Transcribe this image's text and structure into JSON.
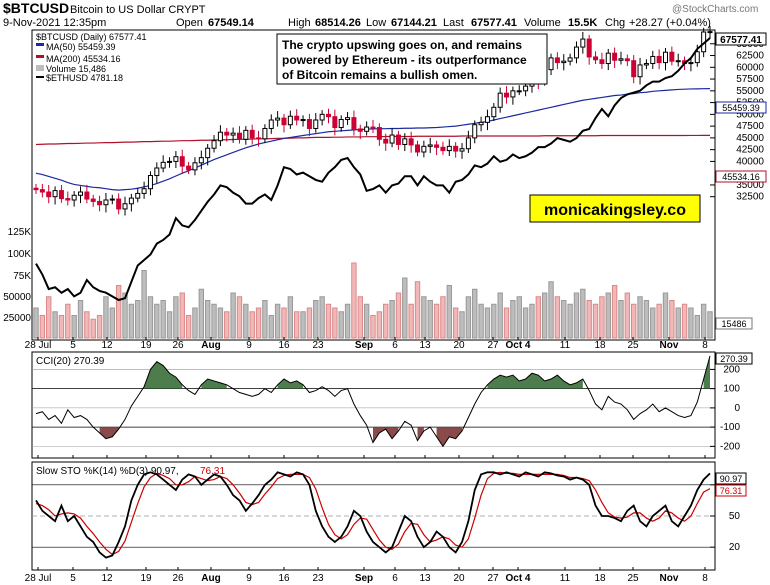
{
  "header": {
    "symbol": "$BTCUSD",
    "subtitle": "Bitcoin to US Dollar  CRYPT",
    "date": "9-Nov-2021 12:35pm",
    "open_label": "Open",
    "open": "67549.14",
    "high_label": "High",
    "high": "68514.26",
    "low_label": "Low",
    "low": "67144.21",
    "last_label": "Last",
    "last": "67577.41",
    "volume_label": "Volume",
    "volume": "15.5K",
    "chg_label": "Chg",
    "chg": "+28.27 (+0.04%)",
    "watermark": "@StockCharts.com"
  },
  "legend": {
    "price": "$BTCUSD (Daily) 67577.41",
    "ma50": "MA(50) 55459.39",
    "ma200": "MA(200) 45534.16",
    "volume": "Volume 15,486",
    "eth": "$ETHUSD 4781.18"
  },
  "annotation": {
    "lines": [
      "The crypto upswing goes on, and remains",
      "powered by Ethereum - its outperformance",
      "of Bitcoin remains a bullish omen."
    ]
  },
  "brand": "monicakingsley.co",
  "badges": {
    "last": "67577.41",
    "ma50": "55459.39",
    "ma200": "45534.16",
    "volume": "15486",
    "cci": "270.39",
    "sto_k": "90.97",
    "sto_d": "76.31"
  },
  "colors": {
    "up": "#000000",
    "down": "#cc0033",
    "ma50": "#1a2aa0",
    "ma200": "#b0102a",
    "cci_fill": "#4d7d4d",
    "cci_neg_fill": "#8b4a4a",
    "sto_d": "#cc0000",
    "brand_bg": "#ffff00",
    "vol_up": "#bdbdbd",
    "vol_down": "#f0b8b8"
  },
  "chart_data": [
    {
      "type": "candlestick",
      "title": "$BTCUSD (Daily)",
      "x_labels": [
        "28 Jul",
        "5",
        "12",
        "19",
        "26",
        "Aug",
        "9",
        "16",
        "23",
        "Sep",
        "6",
        "13",
        "20",
        "27",
        "Oct 4",
        "11",
        "18",
        "25",
        "Nov",
        "8"
      ],
      "y_ticks": [
        25000,
        30000,
        32500,
        35000,
        40000,
        42500,
        45000,
        47500,
        50000,
        52500,
        55000,
        57500,
        60000,
        62500,
        65000
      ],
      "y_tick_labels": [
        "",
        "",
        "32500",
        "35000",
        "40000",
        "42500",
        "45000",
        "47500",
        "50000",
        "52500",
        "55000",
        "57500",
        "60000",
        "62500",
        "65000"
      ],
      "ylim": [
        25000,
        67500
      ],
      "series_close_approx": [
        34000,
        33500,
        32500,
        33800,
        32100,
        31800,
        32800,
        33500,
        32000,
        31500,
        30800,
        31800,
        32000,
        29900,
        31000,
        32200,
        33200,
        34200,
        37000,
        38600,
        39800,
        40000,
        41000,
        39000,
        38200,
        39700,
        40800,
        42800,
        44400,
        46200,
        45600,
        46000,
        44700,
        46600,
        45000,
        44800,
        47000,
        48800,
        49200,
        47800,
        49600,
        48800,
        48900,
        47000,
        48800,
        50000,
        49500,
        47200,
        48900,
        49300,
        46900,
        46400,
        47300,
        47200,
        44700,
        43900,
        45600,
        43600,
        44800,
        43500,
        42000,
        43200,
        43500,
        43000,
        42300,
        43200,
        42200,
        42700,
        45000,
        47800,
        48300,
        49500,
        51500,
        54500,
        53700,
        55000,
        55000,
        56000,
        57400,
        57000,
        59500,
        62000,
        61000,
        61300,
        62000,
        64300,
        66000,
        62200,
        61600,
        60800,
        63000,
        61500,
        61800,
        61400,
        58000,
        60500,
        60800,
        62300,
        61000,
        63200,
        61300,
        61400,
        60800,
        61000,
        63300,
        67500,
        67577
      ],
      "ma50": [
        37500,
        37200,
        36800,
        36400,
        36000,
        35500,
        35100,
        34900,
        34700,
        34500,
        34400,
        34200,
        34000,
        33900,
        34000,
        34100,
        34300,
        34600,
        34900,
        35300,
        35800,
        36300,
        36900,
        37500,
        38000,
        38600,
        39200,
        39800,
        40400,
        40900,
        41400,
        41900,
        42400,
        42900,
        43300,
        43700,
        44000,
        44300,
        44600,
        44900,
        45100,
        45300,
        45500,
        45700,
        45900,
        46100,
        46300,
        46400,
        46500,
        46600,
        46700,
        46800,
        46850,
        46900,
        46950,
        46950,
        47000,
        47000,
        47050,
        47050,
        47100,
        47100,
        47150,
        47200,
        47300,
        47400,
        47500,
        47700,
        47900,
        48100,
        48300,
        48500,
        48800,
        49100,
        49400,
        49700,
        50000,
        50300,
        50600,
        50900,
        51200,
        51500,
        51800,
        52100,
        52400,
        52700,
        53000,
        53200,
        53400,
        53600,
        53800,
        54000,
        54100,
        54300,
        54400,
        54600,
        54700,
        54900,
        55000,
        55100,
        55200,
        55300,
        55350,
        55400,
        55420,
        55450,
        55459.39
      ],
      "ma200": [
        43600,
        43650,
        43700,
        43700,
        43750,
        43800,
        43800,
        43850,
        43900,
        43900,
        43950,
        44000,
        44000,
        44050,
        44100,
        44100,
        44150,
        44200,
        44200,
        44250,
        44300,
        44300,
        44350,
        44400,
        44400,
        44450,
        44500,
        44500,
        44550,
        44600,
        44600,
        44650,
        44700,
        44700,
        44750,
        44800,
        44800,
        44850,
        44900,
        44900,
        44950,
        45000,
        45000,
        45050,
        45100,
        45100,
        45100,
        45150,
        45150,
        45200,
        45200,
        45200,
        45250,
        45250,
        45250,
        45300,
        45300,
        45300,
        45300,
        45300,
        45350,
        45350,
        45350,
        45350,
        45350,
        45350,
        45350,
        45400,
        45400,
        45400,
        45400,
        45400,
        45400,
        45400,
        45400,
        45400,
        45400,
        45400,
        45400,
        45400,
        45450,
        45450,
        45450,
        45450,
        45450,
        45450,
        45450,
        45450,
        45450,
        45500,
        45500,
        45500,
        45500,
        45500,
        45500,
        45500,
        45500,
        45500,
        45500,
        45500,
        45500,
        45500,
        45500,
        45520,
        45520,
        45530,
        45534.16
      ],
      "eth_overlay": [
        0.47,
        0.41,
        0.33,
        0.34,
        0.31,
        0.33,
        0.29,
        0.31,
        0.38,
        0.34,
        0.32,
        0.31,
        0.29,
        0.27,
        0.28,
        0.37,
        0.46,
        0.49,
        0.52,
        0.58,
        0.6,
        0.63,
        0.72,
        0.68,
        0.67,
        0.71,
        0.76,
        0.81,
        0.85,
        0.9,
        0.89,
        0.86,
        0.84,
        0.8,
        0.8,
        0.83,
        0.85,
        0.82,
        0.9,
        1.0,
        0.99,
        0.96,
        0.97,
        0.95,
        0.93,
        0.92,
        0.97,
        1.0,
        1.04,
        1.05,
        1.0,
        0.96,
        0.87,
        0.88,
        0.9,
        0.86,
        0.9,
        0.91,
        0.95,
        0.95,
        0.9,
        0.95,
        0.92,
        0.9,
        0.9,
        0.86,
        0.92,
        0.93,
        0.96,
        1.01,
        1.0,
        1.02,
        1.06,
        1.03,
        1.04,
        1.07,
        1.05,
        1.06,
        1.08,
        1.11,
        1.11,
        1.13,
        1.16,
        1.15,
        1.14,
        1.16,
        1.2,
        1.21,
        1.27,
        1.32,
        1.28,
        1.34,
        1.38,
        1.4,
        1.41,
        1.42,
        1.45,
        1.47,
        1.47,
        1.49,
        1.5,
        1.53,
        1.57,
        1.6,
        1.65,
        1.68,
        1.71
      ],
      "volume_pct_of_max": [
        0.4,
        0.3,
        0.55,
        0.35,
        0.3,
        0.45,
        0.3,
        0.5,
        0.35,
        0.25,
        0.3,
        0.55,
        0.4,
        0.7,
        0.6,
        0.45,
        0.5,
        0.9,
        0.55,
        0.45,
        0.5,
        0.35,
        0.55,
        0.6,
        0.3,
        0.4,
        0.65,
        0.5,
        0.45,
        0.4,
        0.35,
        0.6,
        0.55,
        0.45,
        0.35,
        0.4,
        0.5,
        0.3,
        0.45,
        0.4,
        0.55,
        0.35,
        0.35,
        0.4,
        0.5,
        0.55,
        0.45,
        0.4,
        0.35,
        0.45,
        1.0,
        0.55,
        0.45,
        0.3,
        0.35,
        0.45,
        0.5,
        0.6,
        0.8,
        0.45,
        0.75,
        0.55,
        0.5,
        0.45,
        0.55,
        0.7,
        0.4,
        0.35,
        0.55,
        0.65,
        0.45,
        0.4,
        0.45,
        0.6,
        0.4,
        0.5,
        0.55,
        0.4,
        0.45,
        0.55,
        0.6,
        0.75,
        0.55,
        0.5,
        0.45,
        0.6,
        0.65,
        0.5,
        0.45,
        0.55,
        0.6,
        0.7,
        0.5,
        0.6,
        0.45,
        0.55,
        0.5,
        0.4,
        0.45,
        0.6,
        0.5,
        0.4,
        0.45,
        0.4,
        0.3,
        0.45,
        0.35
      ],
      "volume_ticks": [
        "125K",
        "100K",
        "75K",
        "50000",
        "25000"
      ]
    },
    {
      "type": "line",
      "title": "CCI(20) 270.39",
      "y_ticks": [
        -200,
        -100,
        0,
        100,
        200
      ],
      "ylim": [
        -250,
        280
      ],
      "values": [
        -30,
        -20,
        -60,
        -40,
        -80,
        -10,
        -50,
        -40,
        -60,
        -100,
        -130,
        -160,
        -150,
        -110,
        -60,
        10,
        60,
        110,
        200,
        240,
        220,
        180,
        160,
        120,
        90,
        70,
        120,
        150,
        140,
        130,
        120,
        100,
        80,
        70,
        60,
        70,
        100,
        80,
        120,
        150,
        130,
        140,
        120,
        80,
        90,
        110,
        90,
        60,
        90,
        100,
        20,
        -40,
        -90,
        -180,
        -130,
        -110,
        -160,
        -120,
        -70,
        -90,
        -170,
        -120,
        -100,
        -150,
        -200,
        -150,
        -160,
        -120,
        -50,
        20,
        80,
        120,
        150,
        170,
        160,
        170,
        140,
        150,
        180,
        170,
        140,
        150,
        170,
        140,
        120,
        130,
        150,
        90,
        20,
        -10,
        60,
        30,
        20,
        -10,
        -60,
        -30,
        -10,
        20,
        -20,
        0,
        -20,
        -40,
        -50,
        -40,
        30,
        150,
        270.39
      ]
    },
    {
      "type": "line",
      "title": "Slow STO %K(14) %D(3) 90.97, 76.31",
      "y_ticks": [
        20,
        50,
        80
      ],
      "ylim": [
        0,
        100
      ],
      "series": [
        {
          "name": "%K(14)",
          "values": [
            65,
            55,
            50,
            45,
            60,
            45,
            50,
            40,
            30,
            25,
            15,
            10,
            12,
            25,
            40,
            65,
            80,
            90,
            92,
            90,
            85,
            80,
            75,
            85,
            90,
            88,
            80,
            85,
            90,
            88,
            80,
            70,
            65,
            55,
            62,
            70,
            80,
            85,
            92,
            90,
            88,
            92,
            90,
            80,
            55,
            40,
            30,
            25,
            30,
            40,
            55,
            50,
            35,
            25,
            20,
            15,
            20,
            35,
            50,
            45,
            30,
            20,
            25,
            35,
            30,
            20,
            15,
            25,
            45,
            75,
            90,
            92,
            92,
            90,
            92,
            90,
            88,
            92,
            90,
            88,
            92,
            91,
            89,
            88,
            85,
            87,
            85,
            80,
            60,
            50,
            50,
            48,
            45,
            55,
            60,
            45,
            40,
            50,
            55,
            60,
            45,
            40,
            50,
            60,
            75,
            85,
            90.97
          ]
        },
        {
          "name": "%D(3)",
          "values": [
            62,
            60,
            56,
            50,
            52,
            53,
            52,
            48,
            40,
            33,
            25,
            18,
            13,
            16,
            26,
            44,
            62,
            78,
            87,
            91,
            89,
            86,
            80,
            80,
            83,
            88,
            86,
            84,
            85,
            88,
            86,
            80,
            72,
            63,
            61,
            63,
            71,
            78,
            86,
            89,
            90,
            90,
            90,
            87,
            76,
            58,
            42,
            32,
            28,
            32,
            42,
            48,
            47,
            37,
            27,
            20,
            18,
            23,
            35,
            43,
            42,
            32,
            25,
            27,
            30,
            28,
            22,
            20,
            28,
            48,
            70,
            86,
            91,
            92,
            91,
            91,
            90,
            90,
            90,
            90,
            90,
            90,
            90,
            89,
            87,
            87,
            86,
            84,
            75,
            63,
            53,
            49,
            48,
            49,
            53,
            53,
            48,
            45,
            48,
            55,
            53,
            48,
            45,
            50,
            62,
            73,
            76.31
          ]
        }
      ]
    }
  ]
}
